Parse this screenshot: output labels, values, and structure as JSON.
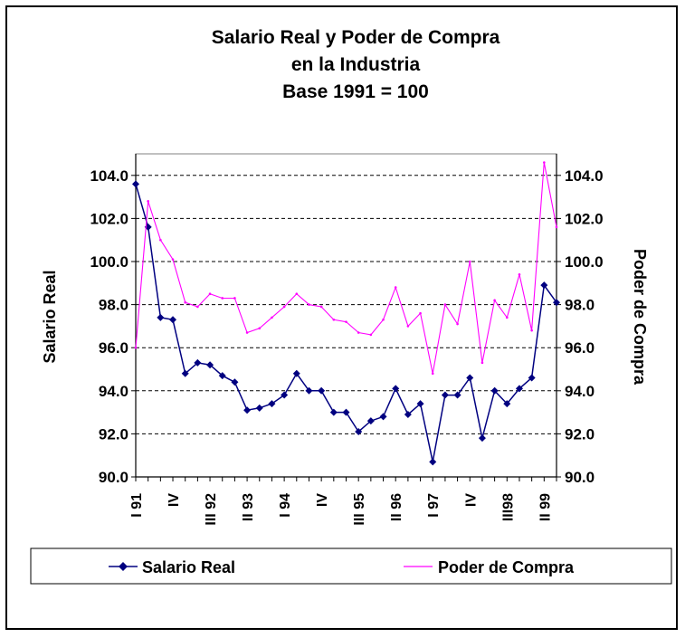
{
  "chart_data": {
    "type": "line",
    "title_lines": [
      "Salario Real y Poder de Compra",
      "en la Industria",
      "Base 1991 = 100"
    ],
    "ylabel_left": "Salario Real",
    "ylabel_right": "Poder de Compra",
    "ylim": [
      90,
      105
    ],
    "yticks": [
      "90.0",
      "92.0",
      "94.0",
      "96.0",
      "98.0",
      "100.0",
      "102.0",
      "104.0"
    ],
    "x_tick_labels": [
      "I 91",
      "IV",
      "III 92",
      "II 93",
      "I 94",
      "IV",
      "III 95",
      "II 96",
      "I 97",
      "IV",
      "III98",
      "II 99"
    ],
    "x_tick_positions": [
      1,
      4,
      7,
      10,
      13,
      16,
      19,
      22,
      25,
      28,
      31,
      34
    ],
    "grid": true,
    "legend_position": "bottom",
    "series": [
      {
        "name": "Salario Real",
        "color": "#000080",
        "marker": "diamond",
        "values": [
          103.6,
          101.6,
          97.4,
          97.3,
          94.8,
          95.3,
          95.2,
          94.7,
          94.4,
          93.1,
          93.2,
          93.4,
          93.8,
          94.8,
          94.0,
          94.0,
          93.0,
          93.0,
          92.1,
          92.6,
          92.8,
          94.1,
          92.9,
          93.4,
          90.7,
          93.8,
          93.8,
          94.6,
          91.8,
          94.0,
          93.4,
          94.1,
          94.6,
          98.9,
          98.1
        ]
      },
      {
        "name": "Poder de Compra",
        "color": "#ff00ff",
        "marker": "none",
        "values": [
          96.0,
          102.8,
          101.0,
          100.1,
          98.1,
          97.9,
          98.5,
          98.3,
          98.3,
          96.7,
          96.9,
          97.4,
          97.9,
          98.5,
          98.0,
          97.9,
          97.3,
          97.2,
          96.7,
          96.6,
          97.3,
          98.8,
          97.0,
          97.6,
          94.8,
          98.0,
          97.1,
          100.0,
          95.3,
          98.2,
          97.4,
          99.4,
          96.8,
          104.6,
          101.6
        ]
      }
    ]
  }
}
